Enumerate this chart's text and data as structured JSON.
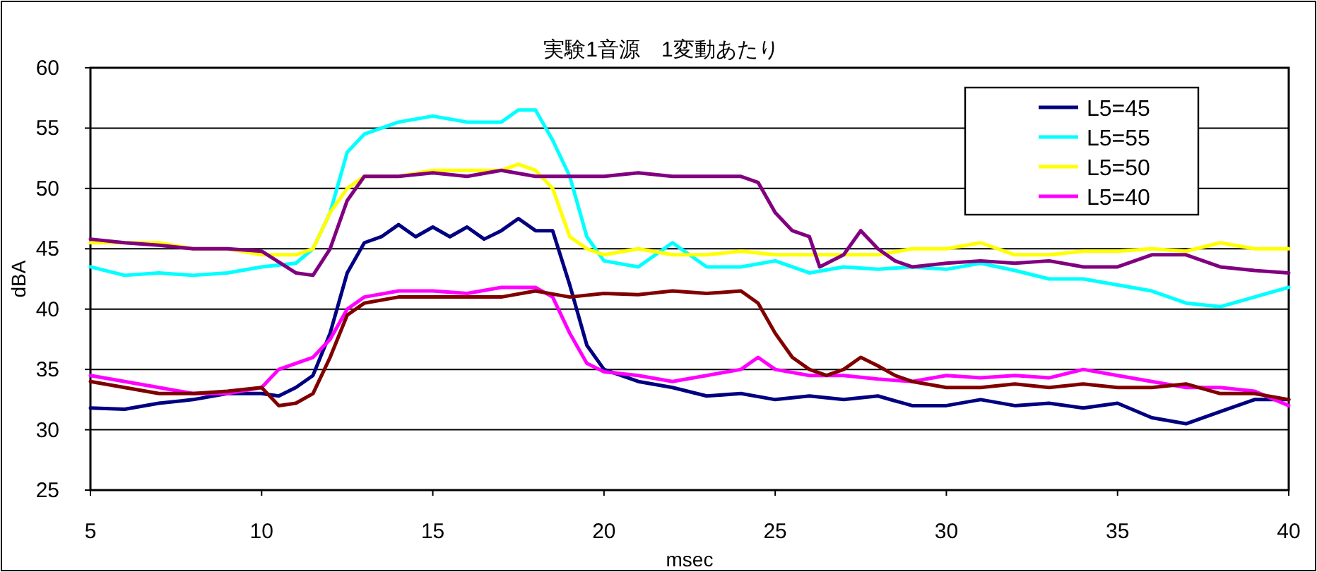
{
  "chart_data": {
    "type": "line",
    "title": "実験1音源　1変動あたり",
    "xlabel": "msec",
    "ylabel": "dBA",
    "xlim": [
      5,
      40
    ],
    "xticks": [
      5,
      10,
      15,
      20,
      25,
      30,
      35,
      40
    ],
    "ylim": [
      25,
      60
    ],
    "yticks": [
      25,
      30,
      35,
      40,
      45,
      50,
      55,
      60
    ],
    "grid": "y",
    "legend": "top right",
    "marker": "none",
    "line_style": "solid",
    "series": [
      {
        "name": "L5=45",
        "color": "#000080",
        "x": [
          5,
          6,
          7,
          8,
          9,
          10,
          10.5,
          11,
          11.5,
          12,
          12.5,
          13,
          13.5,
          14,
          14.5,
          15,
          15.5,
          16,
          16.5,
          17,
          17.5,
          18,
          18.5,
          19,
          19.5,
          20,
          20.5,
          21,
          22,
          23,
          24,
          25,
          26,
          27,
          28,
          29,
          30,
          31,
          32,
          33,
          34,
          35,
          36,
          37,
          38,
          39,
          40
        ],
        "values": [
          31.8,
          31.7,
          32.2,
          32.5,
          33,
          33,
          32.8,
          33.5,
          34.5,
          38,
          43,
          45.5,
          46,
          47,
          46,
          46.8,
          46,
          46.8,
          45.8,
          46.5,
          47.5,
          46.5,
          46.5,
          42,
          37,
          35,
          34.5,
          34,
          33.5,
          32.8,
          33,
          32.5,
          32.8,
          32.5,
          32.8,
          32,
          32,
          32.5,
          32,
          32.2,
          31.8,
          32.2,
          31,
          30.5,
          31.5,
          32.5,
          32.5
        ]
      },
      {
        "name": "L5=55",
        "color": "#00ffff",
        "x": [
          5,
          6,
          7,
          8,
          9,
          10,
          11,
          11.5,
          12,
          12.5,
          13,
          13.5,
          14,
          15,
          16,
          17,
          17.5,
          18,
          18.5,
          19,
          19.5,
          20,
          21,
          22,
          23,
          24,
          25,
          26,
          27,
          28,
          29,
          30,
          31,
          32,
          33,
          34,
          35,
          36,
          37,
          38,
          39,
          40
        ],
        "values": [
          43.5,
          42.8,
          43,
          42.8,
          43,
          43.5,
          43.8,
          45,
          48,
          53,
          54.5,
          55,
          55.5,
          56,
          55.5,
          55.5,
          56.5,
          56.5,
          54,
          51,
          46,
          44,
          43.5,
          45.5,
          43.5,
          43.5,
          44,
          43,
          43.5,
          43.3,
          43.5,
          43.3,
          43.8,
          43.2,
          42.5,
          42.5,
          42,
          41.5,
          40.5,
          40.2,
          41,
          41.8
        ]
      },
      {
        "name": "L5=50",
        "color": "#ffff00",
        "x": [
          5,
          6,
          7,
          8,
          9,
          10,
          11,
          11.5,
          12,
          12.5,
          13,
          14,
          15,
          16,
          17,
          17.5,
          18,
          18.5,
          19,
          19.5,
          20,
          21,
          22,
          23,
          24,
          25,
          26,
          27,
          28,
          29,
          30,
          31,
          32,
          33,
          34,
          35,
          36,
          37,
          38,
          39,
          40
        ],
        "values": [
          45.5,
          45.5,
          45.5,
          45,
          45,
          44.5,
          44.5,
          45,
          48,
          50,
          51,
          51,
          51.5,
          51.5,
          51.5,
          52,
          51.5,
          50,
          46,
          45,
          44.5,
          45,
          44.5,
          44.5,
          44.8,
          44.5,
          44.5,
          44.5,
          44.5,
          45,
          45,
          45.5,
          44.5,
          44.5,
          44.8,
          44.8,
          45,
          44.8,
          45.5,
          45,
          45
        ]
      },
      {
        "name": "L5=40",
        "color": "#ff00ff",
        "x": [
          5,
          6,
          7,
          8,
          9,
          10,
          10.5,
          11,
          11.5,
          12,
          12.5,
          13,
          14,
          15,
          16,
          17,
          18,
          18.5,
          19,
          19.5,
          20,
          21,
          22,
          23,
          24,
          24.5,
          25,
          26,
          27,
          28,
          29,
          30,
          31,
          32,
          33,
          34,
          35,
          36,
          37,
          38,
          39,
          40
        ],
        "values": [
          34.5,
          34,
          33.5,
          33,
          33,
          33.5,
          35,
          35.5,
          36,
          37.5,
          40,
          41,
          41.5,
          41.5,
          41.3,
          41.8,
          41.8,
          41,
          38,
          35.5,
          34.8,
          34.5,
          34,
          34.5,
          35,
          36,
          35,
          34.5,
          34.5,
          34.2,
          34,
          34.5,
          34.3,
          34.5,
          34.3,
          35,
          34.5,
          34,
          33.5,
          33.5,
          33.2,
          32
        ]
      },
      {
        "color": "#800080",
        "x": [
          5,
          6,
          7,
          8,
          9,
          10,
          11,
          11.5,
          12,
          12.5,
          13,
          14,
          15,
          16,
          17,
          18,
          19,
          20,
          21,
          22,
          23,
          24,
          24.5,
          25,
          25.5,
          26,
          26.3,
          27,
          27.5,
          28,
          28.5,
          29,
          30,
          31,
          32,
          33,
          34,
          35,
          36,
          37,
          38,
          39,
          40
        ],
        "values": [
          45.8,
          45.5,
          45.3,
          45,
          45,
          44.8,
          43,
          42.8,
          45,
          49,
          51,
          51,
          51.3,
          51,
          51.5,
          51,
          51,
          51,
          51.3,
          51,
          51,
          51,
          50.5,
          48,
          46.5,
          46,
          43.5,
          44.5,
          46.5,
          45,
          44,
          43.5,
          43.8,
          44,
          43.8,
          44,
          43.5,
          43.5,
          44.5,
          44.5,
          43.5,
          43.2,
          43
        ]
      },
      {
        "color": "#800000",
        "x": [
          5,
          6,
          7,
          8,
          9,
          10,
          10.5,
          11,
          11.5,
          12,
          12.5,
          13,
          14,
          15,
          16,
          17,
          18,
          19,
          20,
          21,
          22,
          23,
          24,
          24.5,
          25,
          25.5,
          26,
          26.5,
          27,
          27.5,
          28,
          28.5,
          29,
          30,
          31,
          32,
          33,
          34,
          35,
          36,
          37,
          38,
          39,
          40
        ],
        "values": [
          34,
          33.5,
          33,
          33,
          33.2,
          33.5,
          32,
          32.2,
          33,
          36,
          39.5,
          40.5,
          41,
          41,
          41,
          41,
          41.5,
          41,
          41.3,
          41.2,
          41.5,
          41.3,
          41.5,
          40.5,
          38,
          36,
          35,
          34.5,
          35,
          36,
          35.3,
          34.5,
          34,
          33.5,
          33.5,
          33.8,
          33.5,
          33.8,
          33.5,
          33.5,
          33.8,
          33,
          33,
          32.5
        ]
      }
    ]
  }
}
